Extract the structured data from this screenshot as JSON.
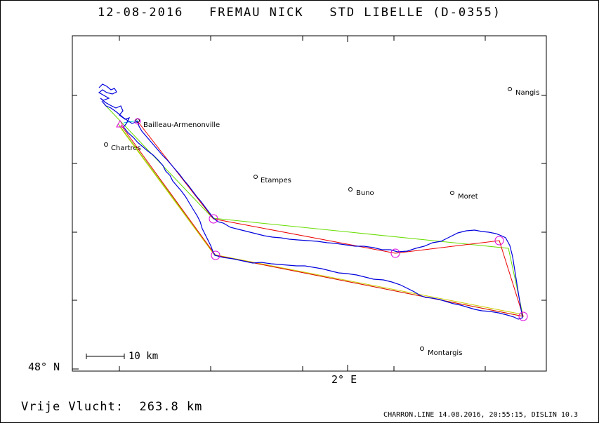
{
  "header": {
    "date": "12-08-2016",
    "pilot": "FREMAU NICK",
    "glider": "STD LIBELLE (D-0355)"
  },
  "axes": {
    "lat_label": "48° N",
    "lon_label": "2° E"
  },
  "scale_bar": {
    "label": "10 km"
  },
  "towns": [
    {
      "name": "Nangis"
    },
    {
      "name": "Bailleau-Armenonville"
    },
    {
      "name": "Chartres"
    },
    {
      "name": "Etampes"
    },
    {
      "name": "Buno"
    },
    {
      "name": "Moret"
    },
    {
      "name": "Montargis"
    }
  ],
  "colors": {
    "track": "#0000dd",
    "course_red": "#ee0000",
    "course_green": "#66dd00",
    "course_yellow": "#cccc00",
    "turnpoint_circle": "#dd00dd",
    "start_line": "#00cccc"
  },
  "footer": {
    "distance_text": "Vrije Vlucht:  263.8 km",
    "credit_text": "CHARRON.LINE 14.08.2016, 20:55:15, DISLIN 10.3"
  }
}
